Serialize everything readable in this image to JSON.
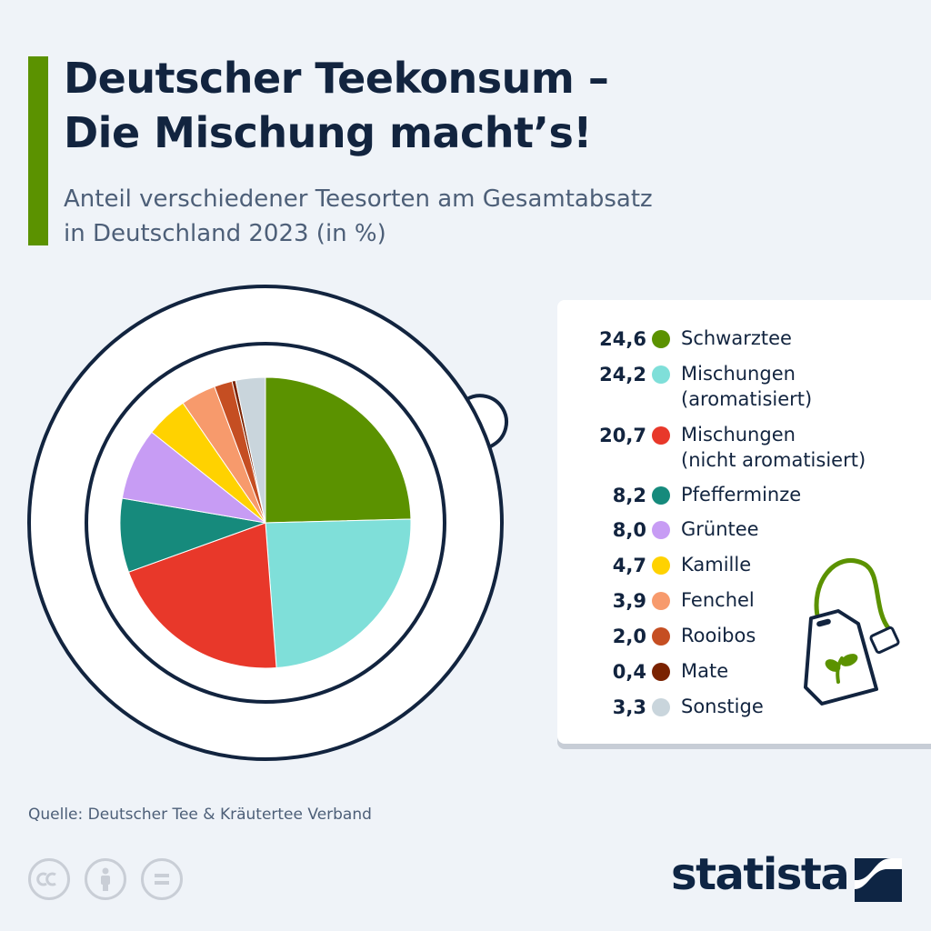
{
  "header": {
    "title_line1": "Deutscher Teekonsum –",
    "title_line2": "Die Mischung macht’s!",
    "subtitle_line1": "Anteil verschiedener Teesorten am Gesamtabsatz",
    "subtitle_line2": "in Deutschland 2023 (in %)"
  },
  "chart_data": {
    "type": "pie",
    "title": "Deutscher Teekonsum – Die Mischung macht’s!",
    "subtitle": "Anteil verschiedener Teesorten am Gesamtabsatz in Deutschland 2023 (in %)",
    "unit": "%",
    "legend_placement": "right",
    "slices": [
      {
        "label_lines": [
          "Schwarztee"
        ],
        "value": 24.6,
        "value_text": "24,6",
        "color": "#5b9200"
      },
      {
        "label_lines": [
          "Mischungen",
          "(aromatisiert)"
        ],
        "value": 24.2,
        "value_text": "24,2",
        "color": "#7fdfd9"
      },
      {
        "label_lines": [
          "Mischungen",
          "(nicht aromatisiert)"
        ],
        "value": 20.7,
        "value_text": "20,7",
        "color": "#e8382a"
      },
      {
        "label_lines": [
          "Pfefferminze"
        ],
        "value": 8.2,
        "value_text": "8,2",
        "color": "#168a7c"
      },
      {
        "label_lines": [
          "Grüntee"
        ],
        "value": 8.0,
        "value_text": "8,0",
        "color": "#c79cf4"
      },
      {
        "label_lines": [
          "Kamille"
        ],
        "value": 4.7,
        "value_text": "4,7",
        "color": "#ffd200"
      },
      {
        "label_lines": [
          "Fenchel"
        ],
        "value": 3.9,
        "value_text": "3,9",
        "color": "#f79a6c"
      },
      {
        "label_lines": [
          "Rooibos"
        ],
        "value": 2.0,
        "value_text": "2,0",
        "color": "#c54e22"
      },
      {
        "label_lines": [
          "Mate"
        ],
        "value": 0.4,
        "value_text": "0,4",
        "color": "#7a2200"
      },
      {
        "label_lines": [
          "Sonstige"
        ],
        "value": 3.3,
        "value_text": "3,3",
        "color": "#c9d5dc"
      }
    ]
  },
  "icons": {
    "cup": "teacup-icon",
    "teabag": "teabag-icon",
    "license": [
      "creative-commons-icon",
      "attribution-icon",
      "no-derivatives-icon"
    ],
    "brand": "statista-logo"
  },
  "colors": {
    "accent": "#5b9200",
    "text_dark": "#12243f",
    "text_muted": "#4d5f78",
    "background": "#eff3f8"
  },
  "footer": {
    "source": "Quelle: Deutscher Tee & Kräutertee Verband",
    "brand": "statista"
  }
}
